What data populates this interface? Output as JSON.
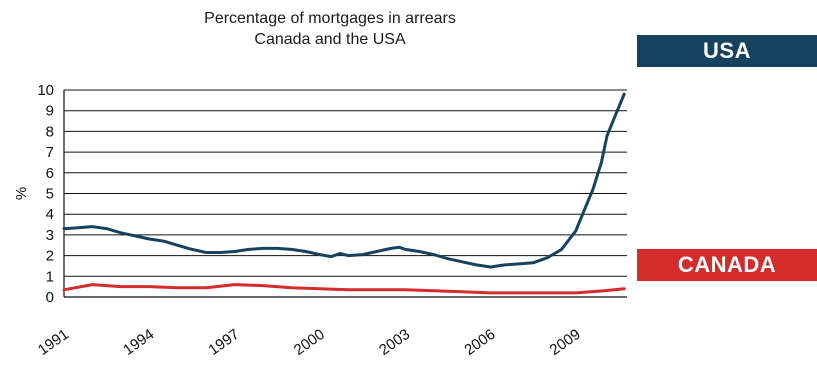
{
  "chart_data": {
    "type": "line",
    "title": "Percentage of mortgages in arrears",
    "subtitle": "Canada and the USA",
    "xlabel": "",
    "ylabel": "%",
    "ylim": [
      0,
      10
    ],
    "yticks": [
      "0",
      "1",
      "2",
      "3",
      "4",
      "5",
      "6",
      "7",
      "8",
      "9",
      "10"
    ],
    "xlim": [
      1991,
      2010.8
    ],
    "xticks": [
      "1991",
      "1994",
      "1997",
      "2000",
      "2003",
      "2006",
      "2009"
    ],
    "grid": "horizontal",
    "legend_placement": "right",
    "series": [
      {
        "name": "USA",
        "color": "#17425f",
        "points": [
          [
            1991.0,
            3.3
          ],
          [
            1991.5,
            3.35
          ],
          [
            1992.0,
            3.4
          ],
          [
            1992.5,
            3.3
          ],
          [
            1993.0,
            3.1
          ],
          [
            1993.5,
            2.95
          ],
          [
            1994.0,
            2.8
          ],
          [
            1994.5,
            2.7
          ],
          [
            1995.0,
            2.5
          ],
          [
            1995.5,
            2.3
          ],
          [
            1996.0,
            2.15
          ],
          [
            1996.5,
            2.15
          ],
          [
            1997.0,
            2.2
          ],
          [
            1997.5,
            2.3
          ],
          [
            1998.0,
            2.35
          ],
          [
            1998.5,
            2.35
          ],
          [
            1999.0,
            2.3
          ],
          [
            1999.5,
            2.2
          ],
          [
            2000.0,
            2.05
          ],
          [
            2000.4,
            1.95
          ],
          [
            2000.7,
            2.1
          ],
          [
            2001.0,
            2.0
          ],
          [
            2001.5,
            2.05
          ],
          [
            2002.0,
            2.2
          ],
          [
            2002.5,
            2.35
          ],
          [
            2002.8,
            2.4
          ],
          [
            2003.0,
            2.3
          ],
          [
            2003.5,
            2.2
          ],
          [
            2004.0,
            2.05
          ],
          [
            2004.5,
            1.85
          ],
          [
            2005.0,
            1.7
          ],
          [
            2005.5,
            1.55
          ],
          [
            2006.0,
            1.45
          ],
          [
            2006.5,
            1.55
          ],
          [
            2007.0,
            1.6
          ],
          [
            2007.5,
            1.65
          ],
          [
            2008.0,
            1.9
          ],
          [
            2008.5,
            2.3
          ],
          [
            2009.0,
            3.2
          ],
          [
            2009.3,
            4.2
          ],
          [
            2009.6,
            5.2
          ],
          [
            2009.9,
            6.5
          ],
          [
            2010.1,
            7.8
          ],
          [
            2010.4,
            8.8
          ],
          [
            2010.7,
            9.8
          ]
        ]
      },
      {
        "name": "CANADA",
        "color": "#d42b2b",
        "points": [
          [
            1991.0,
            0.35
          ],
          [
            1992.0,
            0.6
          ],
          [
            1993.0,
            0.5
          ],
          [
            1994.0,
            0.5
          ],
          [
            1995.0,
            0.45
          ],
          [
            1996.0,
            0.45
          ],
          [
            1997.0,
            0.6
          ],
          [
            1998.0,
            0.55
          ],
          [
            1999.0,
            0.45
          ],
          [
            2000.0,
            0.4
          ],
          [
            2001.0,
            0.35
          ],
          [
            2002.0,
            0.35
          ],
          [
            2003.0,
            0.35
          ],
          [
            2004.0,
            0.3
          ],
          [
            2005.0,
            0.25
          ],
          [
            2006.0,
            0.2
          ],
          [
            2007.0,
            0.2
          ],
          [
            2008.0,
            0.2
          ],
          [
            2009.0,
            0.2
          ],
          [
            2010.0,
            0.3
          ],
          [
            2010.7,
            0.4
          ]
        ]
      }
    ]
  }
}
